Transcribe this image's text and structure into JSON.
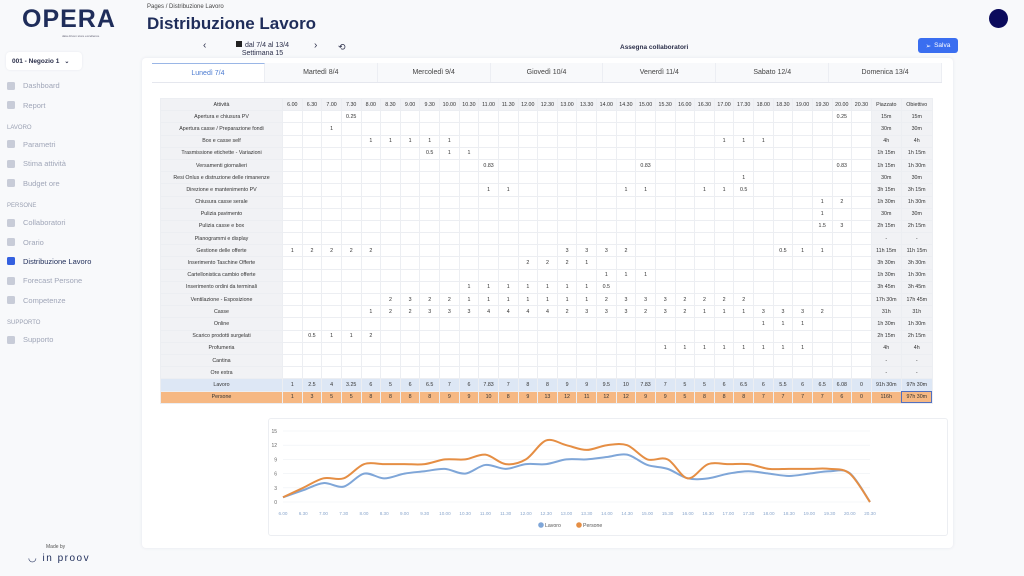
{
  "app": {
    "logo": "OPERA",
    "logo_sub": "data driven store excellence",
    "store": "001 - Negozio 1",
    "made_by": "Made by",
    "company": "in proov"
  },
  "sidebar": {
    "items": [
      {
        "label": "Dashboard",
        "icon": "home-icon"
      },
      {
        "label": "Report",
        "icon": "trend-icon"
      }
    ],
    "sections": [
      {
        "title": "LAVORO",
        "items": [
          {
            "label": "Parametri",
            "icon": "clipboard-icon"
          },
          {
            "label": "Stima attività",
            "icon": "grid-icon"
          },
          {
            "label": "Budget ore",
            "icon": "clock-icon"
          }
        ]
      },
      {
        "title": "PERSONE",
        "items": [
          {
            "label": "Collaboratori",
            "icon": "users-icon"
          },
          {
            "label": "Orario",
            "icon": "calendar-icon"
          },
          {
            "label": "Distribuzione Lavoro",
            "icon": "calendar-check-icon",
            "active": true
          },
          {
            "label": "Forecast Persone",
            "icon": "gear-icon"
          },
          {
            "label": "Competenze",
            "icon": "badge-icon"
          }
        ]
      },
      {
        "title": "SUPPORTO",
        "items": [
          {
            "label": "Supporto",
            "icon": "help-icon"
          }
        ]
      }
    ]
  },
  "header": {
    "crumb_root": "Pages",
    "crumb_sep": "/",
    "crumb_page": "Distribuzione Lavoro",
    "title": "Distribuzione Lavoro"
  },
  "toolbar": {
    "prev": "‹",
    "next": "›",
    "range": "dal 7/4 al 13/4",
    "week": "Settimana 15",
    "assign": "Assegna collaboratori",
    "save": "Salva"
  },
  "tabs": [
    "Lunedì 7/4",
    "Martedì 8/4",
    "Mercoledì 9/4",
    "Giovedì 10/4",
    "Venerdì 11/4",
    "Sabato 12/4",
    "Domenica 13/4"
  ],
  "table": {
    "activity_header": "Attività",
    "piazzato_header": "Piazzato",
    "obiettivo_header": "Obiettivo",
    "times": [
      "6.00",
      "6.30",
      "7.00",
      "7.30",
      "8.00",
      "8.30",
      "9.00",
      "9.30",
      "10.00",
      "10.30",
      "11.00",
      "11.30",
      "12.00",
      "12.30",
      "13.00",
      "13.30",
      "14.00",
      "14.30",
      "15.00",
      "15.30",
      "16.00",
      "16.30",
      "17.00",
      "17.30",
      "18.00",
      "18.30",
      "19.00",
      "19.30",
      "20.00",
      "20.30"
    ],
    "rows": [
      {
        "name": "Apertura e chiusura PV",
        "cells": {
          "3": "0.25",
          "28": "0.25"
        },
        "piazzato": "15m",
        "obiettivo": "15m"
      },
      {
        "name": "Apertura casse / Preparazione fondi",
        "cells": {
          "2": "1"
        },
        "piazzato": "30m",
        "obiettivo": "30m"
      },
      {
        "name": "Box e casse self",
        "cells": {
          "4": "1",
          "5": "1",
          "6": "1",
          "7": "1",
          "8": "1",
          "22": "1",
          "23": "1",
          "24": "1"
        },
        "piazzato": "4h",
        "obiettivo": "4h"
      },
      {
        "name": "Trasmissione etichette - Variazioni",
        "cells": {
          "7": "0.5",
          "8": "1",
          "9": "1"
        },
        "piazzato": "1h 15m",
        "obiettivo": "1h 15m"
      },
      {
        "name": "Versamenti giornalieri",
        "cells": {
          "10": "0.83",
          "18": "0.83",
          "28": "0.83"
        },
        "piazzato": "1h 15m",
        "obiettivo": "1h 30m"
      },
      {
        "name": "Resi Onlus e distruzione delle rimanenze",
        "cells": {
          "23": "1"
        },
        "piazzato": "30m",
        "obiettivo": "30m"
      },
      {
        "name": "Direzione e mantenimento PV",
        "cells": {
          "10": "1",
          "11": "1",
          "17": "1",
          "18": "1",
          "21": "1",
          "22": "1",
          "23": "0.5"
        },
        "piazzato": "3h 15m",
        "obiettivo": "3h 15m"
      },
      {
        "name": "Chiusura casse serale",
        "cells": {
          "27": "1",
          "28": "2"
        },
        "piazzato": "1h 30m",
        "obiettivo": "1h 30m"
      },
      {
        "name": "Pulizia pavimento",
        "cells": {
          "27": "1"
        },
        "piazzato": "30m",
        "obiettivo": "30m"
      },
      {
        "name": "Pulizia casse e box",
        "cells": {
          "27": "1.5",
          "28": "3"
        },
        "piazzato": "2h 15m",
        "obiettivo": "2h 15m"
      },
      {
        "name": "Planogrammi e display",
        "cells": {},
        "piazzato": "-",
        "obiettivo": "-"
      },
      {
        "name": "Gestione delle offerte",
        "cells": {
          "0": "1",
          "1": "2",
          "2": "2",
          "3": "2",
          "4": "2",
          "14": "3",
          "15": "3",
          "16": "3",
          "17": "2",
          "25": "0.5",
          "26": "1",
          "27": "1"
        },
        "piazzato": "11h 15m",
        "obiettivo": "11h 15m"
      },
      {
        "name": "Inserimento Taschine Offerte",
        "cells": {
          "12": "2",
          "13": "2",
          "14": "2",
          "15": "1"
        },
        "piazzato": "3h 30m",
        "obiettivo": "3h 30m"
      },
      {
        "name": "Cartellonistica cambio offerte",
        "cells": {
          "16": "1",
          "17": "1",
          "18": "1"
        },
        "piazzato": "1h 30m",
        "obiettivo": "1h 30m"
      },
      {
        "name": "Inserimento ordini da terminali",
        "cells": {
          "9": "1",
          "10": "1",
          "11": "1",
          "12": "1",
          "13": "1",
          "14": "1",
          "15": "1",
          "16": "0.5"
        },
        "piazzato": "3h 45m",
        "obiettivo": "3h 45m"
      },
      {
        "name": "Ventilazione - Esposizione",
        "cells": {
          "5": "2",
          "6": "3",
          "7": "2",
          "8": "2",
          "9": "1",
          "10": "1",
          "11": "1",
          "12": "1",
          "13": "1",
          "14": "1",
          "15": "1",
          "16": "2",
          "17": "3",
          "18": "3",
          "19": "3",
          "20": "2",
          "21": "2",
          "22": "2",
          "23": "2"
        },
        "piazzato": "17h 30m",
        "obiettivo": "17h 45m"
      },
      {
        "name": "Casse",
        "cells": {
          "4": "1",
          "5": "2",
          "6": "2",
          "7": "3",
          "8": "3",
          "9": "3",
          "10": "4",
          "11": "4",
          "12": "4",
          "13": "4",
          "14": "2",
          "15": "3",
          "16": "3",
          "17": "3",
          "18": "2",
          "19": "3",
          "20": "2",
          "21": "1",
          "22": "1",
          "23": "1",
          "24": "3",
          "25": "3",
          "26": "3",
          "27": "2"
        },
        "piazzato": "31h",
        "obiettivo": "31h"
      },
      {
        "name": "Online",
        "cells": {
          "24": "1",
          "25": "1",
          "26": "1"
        },
        "piazzato": "1h 30m",
        "obiettivo": "1h 30m"
      },
      {
        "name": "Scarico prodotti surgelati",
        "cells": {
          "1": "0.5",
          "2": "1",
          "3": "1",
          "4": "2"
        },
        "piazzato": "2h 15m",
        "obiettivo": "2h 15m"
      },
      {
        "name": "Profumeria",
        "cells": {
          "19": "1",
          "20": "1",
          "21": "1",
          "22": "1",
          "23": "1",
          "24": "1",
          "25": "1",
          "26": "1"
        },
        "piazzato": "4h",
        "obiettivo": "4h"
      },
      {
        "name": "Cantina",
        "cells": {},
        "piazzato": "-",
        "obiettivo": "-"
      },
      {
        "name": "Ore extra",
        "cells": {},
        "piazzato": "-",
        "obiettivo": "-"
      }
    ],
    "lavoro": {
      "name": "Lavoro",
      "values": [
        "1",
        "2.5",
        "4",
        "3.25",
        "6",
        "5",
        "6",
        "6.5",
        "7",
        "6",
        "7.83",
        "7",
        "8",
        "8",
        "9",
        "9",
        "9.5",
        "10",
        "7.83",
        "7",
        "5",
        "5",
        "6",
        "6.5",
        "6",
        "5.5",
        "6",
        "6.5",
        "6.08",
        "0"
      ],
      "piazzato": "91h 30m",
      "obiettivo": "97h 30m"
    },
    "persone": {
      "name": "Persone",
      "values": [
        "1",
        "3",
        "5",
        "5",
        "8",
        "8",
        "8",
        "8",
        "9",
        "9",
        "10",
        "8",
        "9",
        "13",
        "12",
        "11",
        "12",
        "12",
        "9",
        "9",
        "5",
        "8",
        "8",
        "8",
        "7",
        "7",
        "7",
        "7",
        "6",
        "0"
      ],
      "piazzato": "116h",
      "obiettivo": "97h 30m"
    }
  },
  "chart_data": {
    "type": "line",
    "x": [
      "6.00",
      "6.30",
      "7.00",
      "7.30",
      "8.00",
      "8.30",
      "9.00",
      "9.30",
      "10.00",
      "10.30",
      "11.00",
      "11.30",
      "12.00",
      "12.30",
      "13.00",
      "13.30",
      "14.00",
      "14.30",
      "15.00",
      "15.30",
      "16.00",
      "16.30",
      "17.00",
      "17.30",
      "18.00",
      "18.30",
      "19.00",
      "19.30",
      "20.00",
      "20.30"
    ],
    "ylim": [
      0,
      15
    ],
    "yticks": [
      "0",
      "3",
      "6",
      "9",
      "12",
      "15"
    ],
    "grid": true,
    "legend": "bottom-center",
    "series": [
      {
        "name": "Lavoro",
        "color": "#7fa6d8",
        "values": [
          1,
          2.5,
          4,
          3.25,
          6,
          5,
          6,
          6.5,
          7,
          6,
          7.83,
          7,
          8,
          8,
          9,
          9,
          9.5,
          10,
          7.83,
          7,
          5,
          5,
          6,
          6.5,
          6,
          5.5,
          6,
          6.5,
          6.08,
          0
        ]
      },
      {
        "name": "Persone",
        "color": "#e58e44",
        "values": [
          1,
          3,
          5,
          5,
          8,
          8,
          8,
          8,
          9,
          9,
          10,
          8,
          9,
          13,
          12,
          11,
          12,
          12,
          9,
          9,
          5,
          8,
          8,
          8,
          7,
          7,
          7,
          7,
          6,
          0
        ]
      }
    ]
  }
}
